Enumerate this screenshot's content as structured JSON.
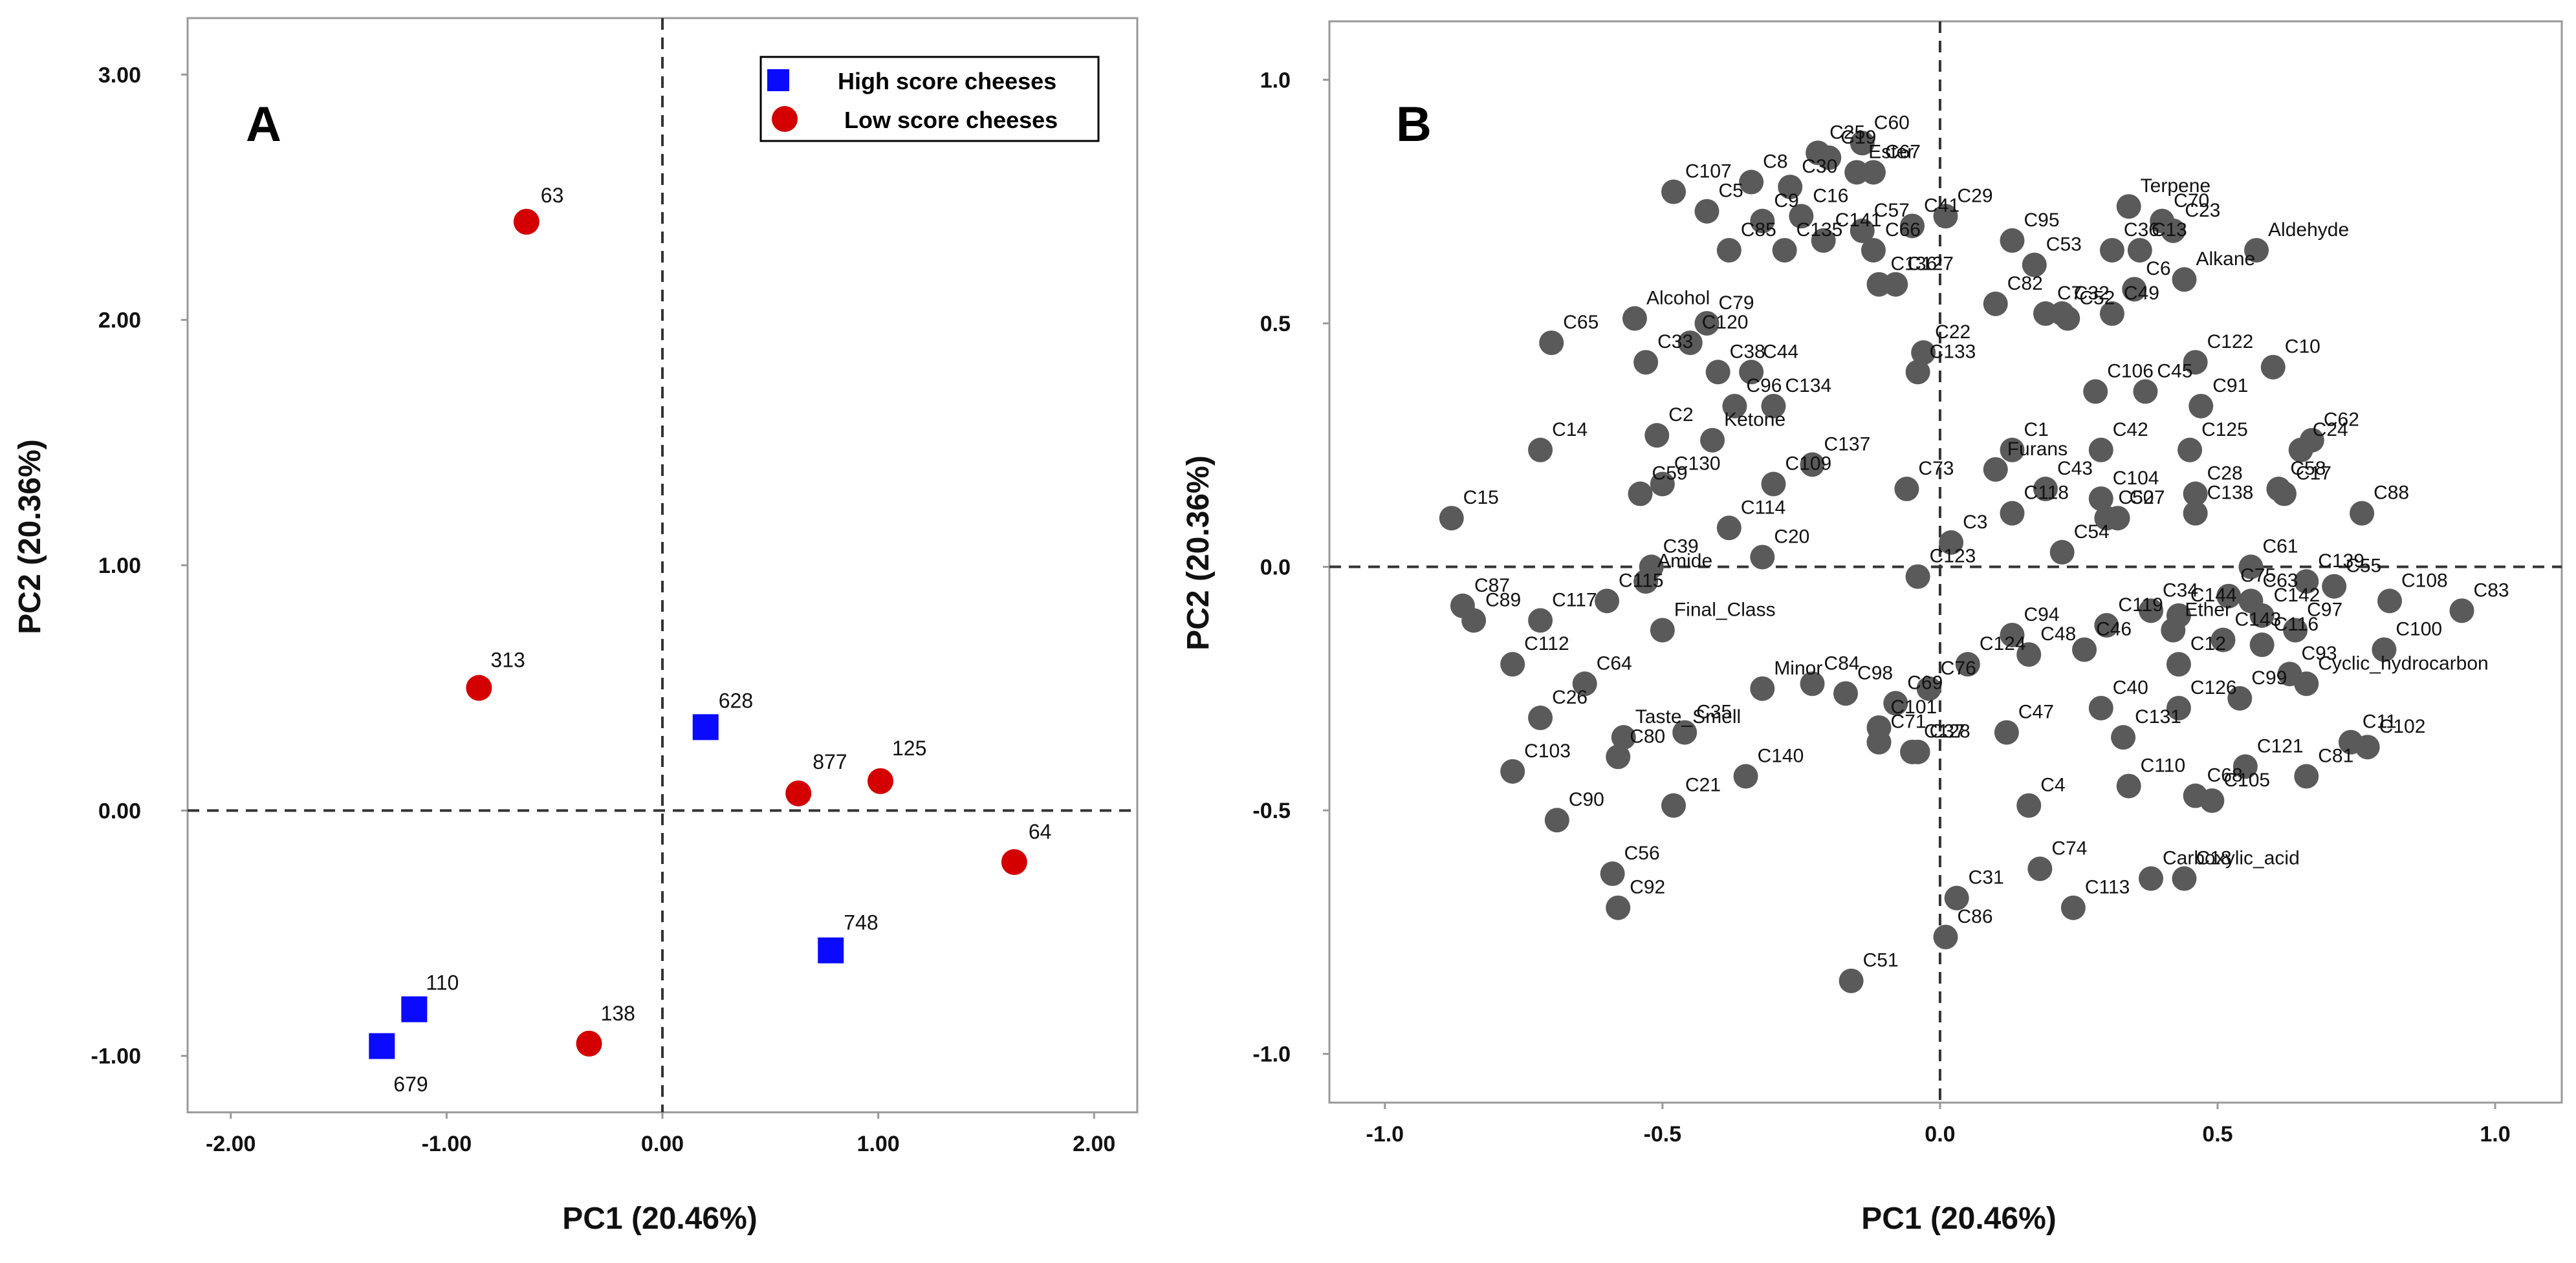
{
  "colors": {
    "high": "#0a0aff",
    "low": "#d40000",
    "variable_fill": "#5a5a5a",
    "frame": "#999999"
  },
  "chart_data": [
    {
      "type": "scatter",
      "panel": "A",
      "xlabel": "PC1 (20.46%)",
      "ylabel": "PC2 (20.36%)",
      "xlim": [
        -2.2,
        2.2
      ],
      "ylim": [
        -1.23,
        3.23
      ],
      "xticks": [
        -2.0,
        -1.0,
        0.0,
        1.0,
        2.0
      ],
      "xtick_labels": [
        "-2.00",
        "-1.00",
        "0.00",
        "1.00",
        "2.00"
      ],
      "yticks": [
        -1.0,
        0.0,
        1.0,
        2.0,
        3.0
      ],
      "ytick_labels": [
        "-1.00",
        "0.00",
        "1.00",
        "2.00",
        "3.00"
      ],
      "grid": false,
      "legend_position": "top-right",
      "series": [
        {
          "name": "High score cheeses",
          "marker": "square",
          "points": [
            {
              "label": "628",
              "x": 0.2,
              "y": 0.34
            },
            {
              "label": "748",
              "x": 0.78,
              "y": -0.57
            },
            {
              "label": "110",
              "x": -1.15,
              "y": -0.81
            },
            {
              "label": "679",
              "x": -1.3,
              "y": -0.96
            }
          ]
        },
        {
          "name": "Low score cheeses",
          "marker": "circle",
          "points": [
            {
              "label": "63",
              "x": -0.63,
              "y": 2.4
            },
            {
              "label": "313",
              "x": -0.85,
              "y": 0.5
            },
            {
              "label": "877",
              "x": 0.63,
              "y": 0.07
            },
            {
              "label": "125",
              "x": 1.01,
              "y": 0.12
            },
            {
              "label": "64",
              "x": 1.63,
              "y": -0.21
            },
            {
              "label": "138",
              "x": -0.34,
              "y": -0.95
            }
          ]
        }
      ]
    },
    {
      "type": "scatter",
      "panel": "B",
      "xlabel": "PC1 (20.46%)",
      "ylabel": "PC2 (20.36%)",
      "xlim": [
        -1.1,
        1.12
      ],
      "ylim": [
        -1.1,
        1.12
      ],
      "xticks": [
        -1.0,
        -0.5,
        0.0,
        0.5,
        1.0
      ],
      "xtick_labels": [
        "-1.0",
        "-0.5",
        "0.0",
        "0.5",
        "1.0"
      ],
      "yticks": [
        -1.0,
        -0.5,
        0.0,
        0.5,
        1.0
      ],
      "ytick_labels": [
        "-1.0",
        "-0.5",
        "0.0",
        "0.5",
        "1.0"
      ],
      "grid": false,
      "points": [
        {
          "label": "C25",
          "x": -0.22,
          "y": 0.85
        },
        {
          "label": "C60",
          "x": -0.14,
          "y": 0.87
        },
        {
          "label": "C67",
          "x": -0.12,
          "y": 0.81
        },
        {
          "label": "C19",
          "x": -0.2,
          "y": 0.84
        },
        {
          "label": "C107",
          "x": -0.48,
          "y": 0.77
        },
        {
          "label": "C8",
          "x": -0.34,
          "y": 0.79
        },
        {
          "label": "C30",
          "x": -0.27,
          "y": 0.78
        },
        {
          "label": "Ester",
          "x": -0.15,
          "y": 0.81
        },
        {
          "label": "C29",
          "x": 0.01,
          "y": 0.72
        },
        {
          "label": "C5",
          "x": -0.42,
          "y": 0.73
        },
        {
          "label": "C9",
          "x": -0.32,
          "y": 0.71
        },
        {
          "label": "C16",
          "x": -0.25,
          "y": 0.72
        },
        {
          "label": "C57",
          "x": -0.14,
          "y": 0.69
        },
        {
          "label": "C41",
          "x": -0.05,
          "y": 0.7
        },
        {
          "label": "C85",
          "x": -0.38,
          "y": 0.65
        },
        {
          "label": "C141",
          "x": -0.21,
          "y": 0.67
        },
        {
          "label": "C66",
          "x": -0.12,
          "y": 0.65
        },
        {
          "label": "C135",
          "x": -0.28,
          "y": 0.65
        },
        {
          "label": "C127",
          "x": -0.08,
          "y": 0.58
        },
        {
          "label": "Terpene",
          "x": 0.34,
          "y": 0.74
        },
        {
          "label": "C23",
          "x": 0.42,
          "y": 0.69
        },
        {
          "label": "C70",
          "x": 0.4,
          "y": 0.71
        },
        {
          "label": "Aldehyde",
          "x": 0.57,
          "y": 0.65
        },
        {
          "label": "C13",
          "x": 0.36,
          "y": 0.65
        },
        {
          "label": "C36",
          "x": 0.31,
          "y": 0.65
        },
        {
          "label": "Alkane",
          "x": 0.44,
          "y": 0.59
        },
        {
          "label": "C95",
          "x": 0.13,
          "y": 0.67
        },
        {
          "label": "C53",
          "x": 0.17,
          "y": 0.62
        },
        {
          "label": "C6",
          "x": 0.35,
          "y": 0.57
        },
        {
          "label": "C49",
          "x": 0.31,
          "y": 0.52
        },
        {
          "label": "Alcohol",
          "x": -0.55,
          "y": 0.51
        },
        {
          "label": "C79",
          "x": -0.42,
          "y": 0.5
        },
        {
          "label": "C136",
          "x": -0.11,
          "y": 0.58
        },
        {
          "label": "C82",
          "x": 0.1,
          "y": 0.54
        },
        {
          "label": "C7",
          "x": 0.19,
          "y": 0.52
        },
        {
          "label": "C32",
          "x": 0.22,
          "y": 0.52
        },
        {
          "label": "C65",
          "x": -0.7,
          "y": 0.46
        },
        {
          "label": "C120",
          "x": -0.45,
          "y": 0.46
        },
        {
          "label": "C44",
          "x": -0.34,
          "y": 0.4
        },
        {
          "label": "C22",
          "x": -0.03,
          "y": 0.44
        },
        {
          "label": "C52",
          "x": 0.23,
          "y": 0.51
        },
        {
          "label": "C122",
          "x": 0.46,
          "y": 0.42
        },
        {
          "label": "C10",
          "x": 0.6,
          "y": 0.41
        },
        {
          "label": "C33",
          "x": -0.53,
          "y": 0.42
        },
        {
          "label": "C38",
          "x": -0.4,
          "y": 0.4
        },
        {
          "label": "C134",
          "x": -0.3,
          "y": 0.33
        },
        {
          "label": "C133",
          "x": -0.04,
          "y": 0.4
        },
        {
          "label": "C45",
          "x": 0.37,
          "y": 0.36
        },
        {
          "label": "C2",
          "x": -0.51,
          "y": 0.27
        },
        {
          "label": "C96",
          "x": -0.37,
          "y": 0.33
        },
        {
          "label": "C91",
          "x": 0.47,
          "y": 0.33
        },
        {
          "label": "C24",
          "x": 0.65,
          "y": 0.24
        },
        {
          "label": "C62",
          "x": 0.67,
          "y": 0.26
        },
        {
          "label": "C106",
          "x": 0.28,
          "y": 0.36
        },
        {
          "label": "C14",
          "x": -0.72,
          "y": 0.24
        },
        {
          "label": "C59",
          "x": -0.54,
          "y": 0.15
        },
        {
          "label": "Ketone",
          "x": -0.41,
          "y": 0.26
        },
        {
          "label": "C1",
          "x": 0.13,
          "y": 0.24
        },
        {
          "label": "C42",
          "x": 0.29,
          "y": 0.24
        },
        {
          "label": "C125",
          "x": 0.45,
          "y": 0.24
        },
        {
          "label": "C58",
          "x": 0.61,
          "y": 0.16
        },
        {
          "label": "C15",
          "x": -0.88,
          "y": 0.1
        },
        {
          "label": "C130",
          "x": -0.5,
          "y": 0.17
        },
        {
          "label": "C109",
          "x": -0.3,
          "y": 0.17
        },
        {
          "label": "C137",
          "x": -0.23,
          "y": 0.21
        },
        {
          "label": "C73",
          "x": -0.06,
          "y": 0.16
        },
        {
          "label": "Furans",
          "x": 0.1,
          "y": 0.2
        },
        {
          "label": "C43",
          "x": 0.19,
          "y": 0.16
        },
        {
          "label": "C104",
          "x": 0.29,
          "y": 0.14
        },
        {
          "label": "C28",
          "x": 0.46,
          "y": 0.15
        },
        {
          "label": "C17",
          "x": 0.62,
          "y": 0.15
        },
        {
          "label": "C88",
          "x": 0.76,
          "y": 0.11
        },
        {
          "label": "C114",
          "x": -0.38,
          "y": 0.08
        },
        {
          "label": "C118",
          "x": 0.13,
          "y": 0.11
        },
        {
          "label": "C27",
          "x": 0.32,
          "y": 0.1
        },
        {
          "label": "C138",
          "x": 0.46,
          "y": 0.11
        },
        {
          "label": "C61",
          "x": 0.56,
          "y": 0.0
        },
        {
          "label": "C39",
          "x": -0.52,
          "y": 0.0
        },
        {
          "label": "Amide",
          "x": -0.53,
          "y": -0.03
        },
        {
          "label": "C20",
          "x": -0.32,
          "y": 0.02
        },
        {
          "label": "C3",
          "x": 0.02,
          "y": 0.05
        },
        {
          "label": "C50",
          "x": 0.3,
          "y": 0.1
        },
        {
          "label": "C63",
          "x": 0.56,
          "y": -0.07
        },
        {
          "label": "C139",
          "x": 0.66,
          "y": -0.03
        },
        {
          "label": "C55",
          "x": 0.71,
          "y": -0.04
        },
        {
          "label": "C108",
          "x": 0.81,
          "y": -0.07
        },
        {
          "label": "C83",
          "x": 0.94,
          "y": -0.09
        },
        {
          "label": "C87",
          "x": -0.86,
          "y": -0.08
        },
        {
          "label": "C89",
          "x": -0.84,
          "y": -0.11
        },
        {
          "label": "C117",
          "x": -0.72,
          "y": -0.11
        },
        {
          "label": "C115",
          "x": -0.6,
          "y": -0.07
        },
        {
          "label": "C123",
          "x": -0.04,
          "y": -0.02
        },
        {
          "label": "C54",
          "x": 0.22,
          "y": 0.03
        },
        {
          "label": "C119",
          "x": 0.3,
          "y": -0.12
        },
        {
          "label": "C34",
          "x": 0.38,
          "y": -0.09
        },
        {
          "label": "C144",
          "x": 0.43,
          "y": -0.1
        },
        {
          "label": "C75",
          "x": 0.52,
          "y": -0.06
        },
        {
          "label": "C142",
          "x": 0.58,
          "y": -0.1
        },
        {
          "label": "C97",
          "x": 0.64,
          "y": -0.13
        },
        {
          "label": "C100",
          "x": 0.8,
          "y": -0.17
        },
        {
          "label": "Final_Class",
          "x": -0.5,
          "y": -0.13
        },
        {
          "label": "C94",
          "x": 0.13,
          "y": -0.14
        },
        {
          "label": "Ether",
          "x": 0.42,
          "y": -0.13
        },
        {
          "label": "C112",
          "x": -0.77,
          "y": -0.2
        },
        {
          "label": "C64",
          "x": -0.64,
          "y": -0.24
        },
        {
          "label": "Minor",
          "x": -0.32,
          "y": -0.25
        },
        {
          "label": "C84",
          "x": -0.23,
          "y": -0.24
        },
        {
          "label": "C124",
          "x": 0.05,
          "y": -0.2
        },
        {
          "label": "C48",
          "x": 0.16,
          "y": -0.18
        },
        {
          "label": "C46",
          "x": 0.26,
          "y": -0.17
        },
        {
          "label": "C12",
          "x": 0.43,
          "y": -0.2
        },
        {
          "label": "C143",
          "x": 0.51,
          "y": -0.15
        },
        {
          "label": "C116",
          "x": 0.58,
          "y": -0.16
        },
        {
          "label": "C93",
          "x": 0.63,
          "y": -0.22
        },
        {
          "label": "Cyclic_hydrocarbon",
          "x": 0.66,
          "y": -0.24
        },
        {
          "label": "C26",
          "x": -0.72,
          "y": -0.31
        },
        {
          "label": "Taste_Smell",
          "x": -0.57,
          "y": -0.35
        },
        {
          "label": "C98",
          "x": -0.17,
          "y": -0.26
        },
        {
          "label": "C76",
          "x": -0.02,
          "y": -0.25
        },
        {
          "label": "C69",
          "x": -0.08,
          "y": -0.28
        },
        {
          "label": "C47",
          "x": 0.12,
          "y": -0.34
        },
        {
          "label": "C126",
          "x": 0.43,
          "y": -0.29
        },
        {
          "label": "C99",
          "x": 0.54,
          "y": -0.27
        },
        {
          "label": "C35",
          "x": -0.46,
          "y": -0.34
        },
        {
          "label": "C140",
          "x": -0.35,
          "y": -0.43
        },
        {
          "label": "C101",
          "x": -0.11,
          "y": -0.33
        },
        {
          "label": "C37",
          "x": -0.04,
          "y": -0.38
        },
        {
          "label": "C40",
          "x": 0.29,
          "y": -0.29
        },
        {
          "label": "C110",
          "x": 0.34,
          "y": -0.45
        },
        {
          "label": "C121",
          "x": 0.55,
          "y": -0.41
        },
        {
          "label": "C11",
          "x": 0.74,
          "y": -0.36
        },
        {
          "label": "C102",
          "x": 0.77,
          "y": -0.37
        },
        {
          "label": "C103",
          "x": -0.77,
          "y": -0.42
        },
        {
          "label": "C80",
          "x": -0.58,
          "y": -0.39
        },
        {
          "label": "C21",
          "x": -0.48,
          "y": -0.49
        },
        {
          "label": "C71",
          "x": -0.11,
          "y": -0.36
        },
        {
          "label": "C131",
          "x": 0.33,
          "y": -0.35
        },
        {
          "label": "C81",
          "x": 0.66,
          "y": -0.43
        },
        {
          "label": "C128",
          "x": -0.05,
          "y": -0.38
        },
        {
          "label": "C4",
          "x": 0.16,
          "y": -0.49
        },
        {
          "label": "C68",
          "x": 0.46,
          "y": -0.47
        },
        {
          "label": "C105",
          "x": 0.49,
          "y": -0.48
        },
        {
          "label": "C74",
          "x": 0.18,
          "y": -0.62
        },
        {
          "label": "C113",
          "x": 0.24,
          "y": -0.7
        },
        {
          "label": "C90",
          "x": -0.69,
          "y": -0.52
        },
        {
          "label": "C56",
          "x": -0.59,
          "y": -0.63
        },
        {
          "label": "C18",
          "x": 0.44,
          "y": -0.64
        },
        {
          "label": "Carboxylic_acid",
          "x": 0.38,
          "y": -0.64
        },
        {
          "label": "C31",
          "x": 0.03,
          "y": -0.68
        },
        {
          "label": "C86",
          "x": 0.01,
          "y": -0.76
        },
        {
          "label": "C51",
          "x": -0.16,
          "y": -0.85
        },
        {
          "label": "C92",
          "x": -0.58,
          "y": -0.7
        }
      ]
    }
  ]
}
